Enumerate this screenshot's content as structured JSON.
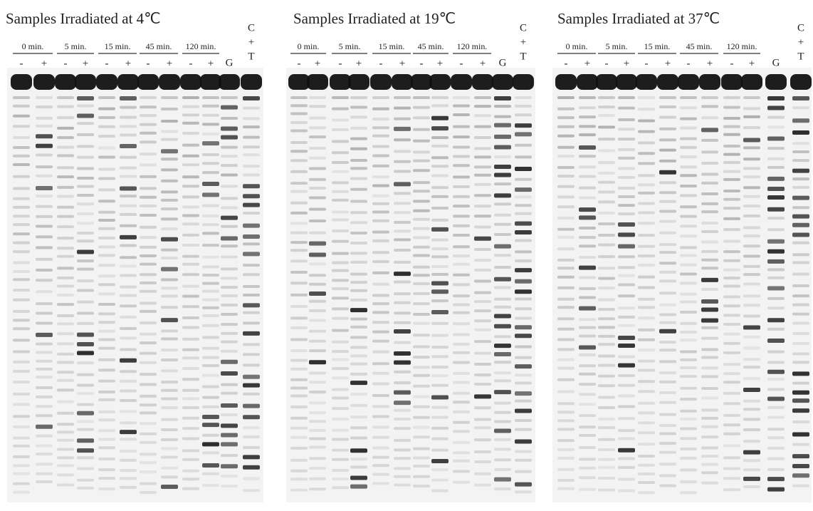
{
  "panels": [
    {
      "title": "Samples Irradiated at 4℃",
      "groups": [
        {
          "label": "0 min.",
          "lanes": [
            "-",
            "+"
          ]
        },
        {
          "label": "5 min.",
          "lanes": [
            "-",
            "+"
          ]
        },
        {
          "label": "15 min.",
          "lanes": [
            "-",
            "+"
          ]
        },
        {
          "label": "45 min.",
          "lanes": [
            "-",
            "+"
          ]
        },
        {
          "label": "120 min.",
          "lanes": [
            "-",
            "+"
          ]
        }
      ],
      "g_label": "G",
      "ct_label": [
        "C",
        "+",
        "T"
      ]
    },
    {
      "title": "Samples Irradiated at 19℃",
      "groups": [
        {
          "label": "0 min.",
          "lanes": [
            "-",
            "+"
          ]
        },
        {
          "label": "5 min.",
          "lanes": [
            "-",
            "+"
          ]
        },
        {
          "label": "15 min.",
          "lanes": [
            "-",
            "+"
          ]
        },
        {
          "label": "45 min.",
          "lanes": [
            "-",
            "+"
          ]
        },
        {
          "label": "120 min.",
          "lanes": [
            "-",
            "+"
          ]
        }
      ],
      "g_label": "G",
      "ct_label": [
        "C",
        "+",
        "T"
      ]
    },
    {
      "title": "Samples Irradiated at 37℃",
      "groups": [
        {
          "label": "0 min.",
          "lanes": [
            "-",
            "+"
          ]
        },
        {
          "label": "5 min.",
          "lanes": [
            "-",
            "+"
          ]
        },
        {
          "label": "15 min.",
          "lanes": [
            "-",
            "+"
          ]
        },
        {
          "label": "45 min.",
          "lanes": [
            "-",
            "+"
          ]
        },
        {
          "label": "120 min.",
          "lanes": [
            "-",
            "+"
          ]
        }
      ],
      "g_label": "G",
      "ct_label": [
        "C",
        "+",
        "T"
      ]
    }
  ]
}
